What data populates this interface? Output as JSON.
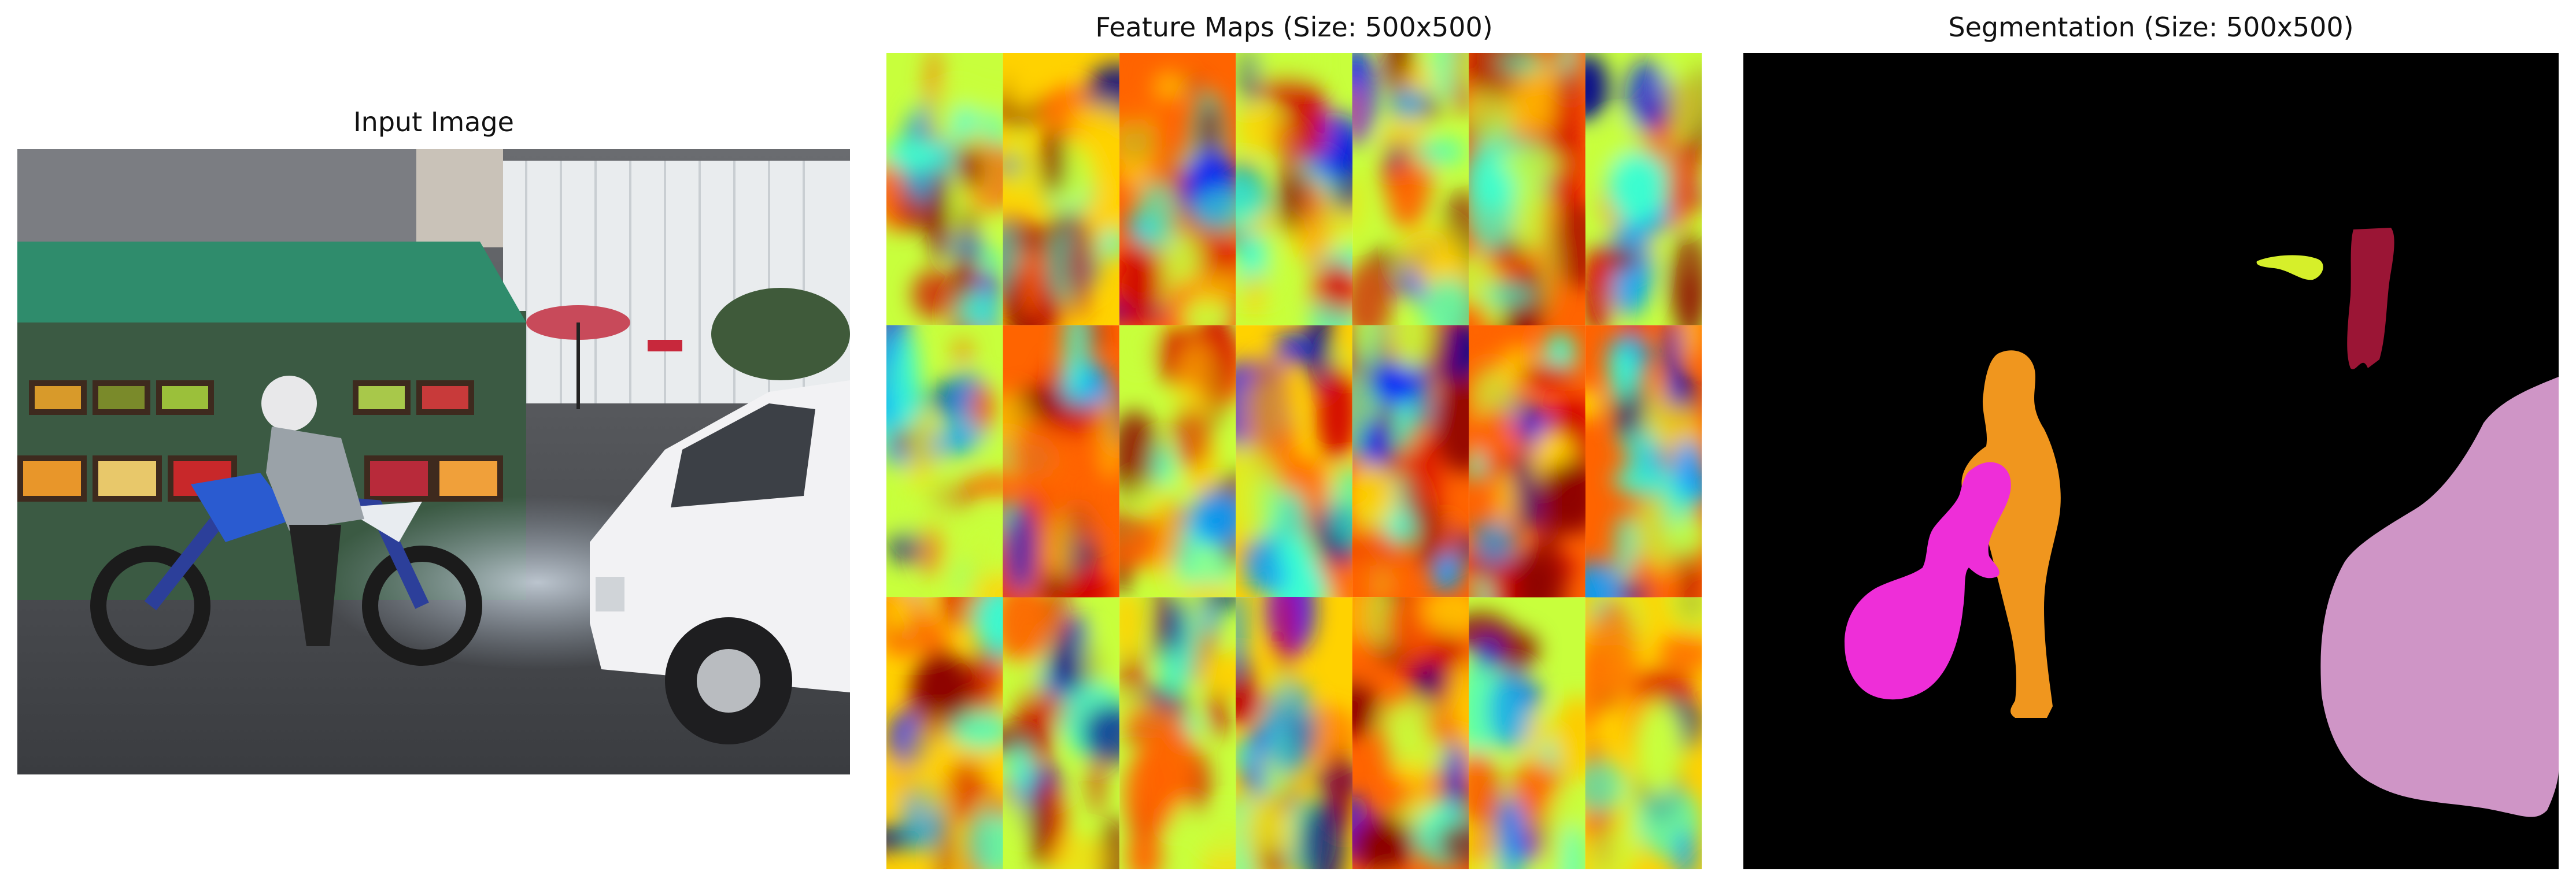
{
  "panels": {
    "input": {
      "title": "Input Image"
    },
    "features": {
      "title": "Feature Maps (Size: 500x500)",
      "grid": {
        "rows": 3,
        "cols": 7
      }
    },
    "segmentation": {
      "title": "Segmentation (Size: 500x500)"
    }
  },
  "colors": {
    "background": "#000000",
    "rider": "#f0961e",
    "motorcycle": "#ee2ed8",
    "van": "#cf95c6",
    "person": "#9b1535",
    "small-object": "#d6ef2a",
    "jet-low": "#0014c8",
    "jet-high": "#d20000"
  }
}
